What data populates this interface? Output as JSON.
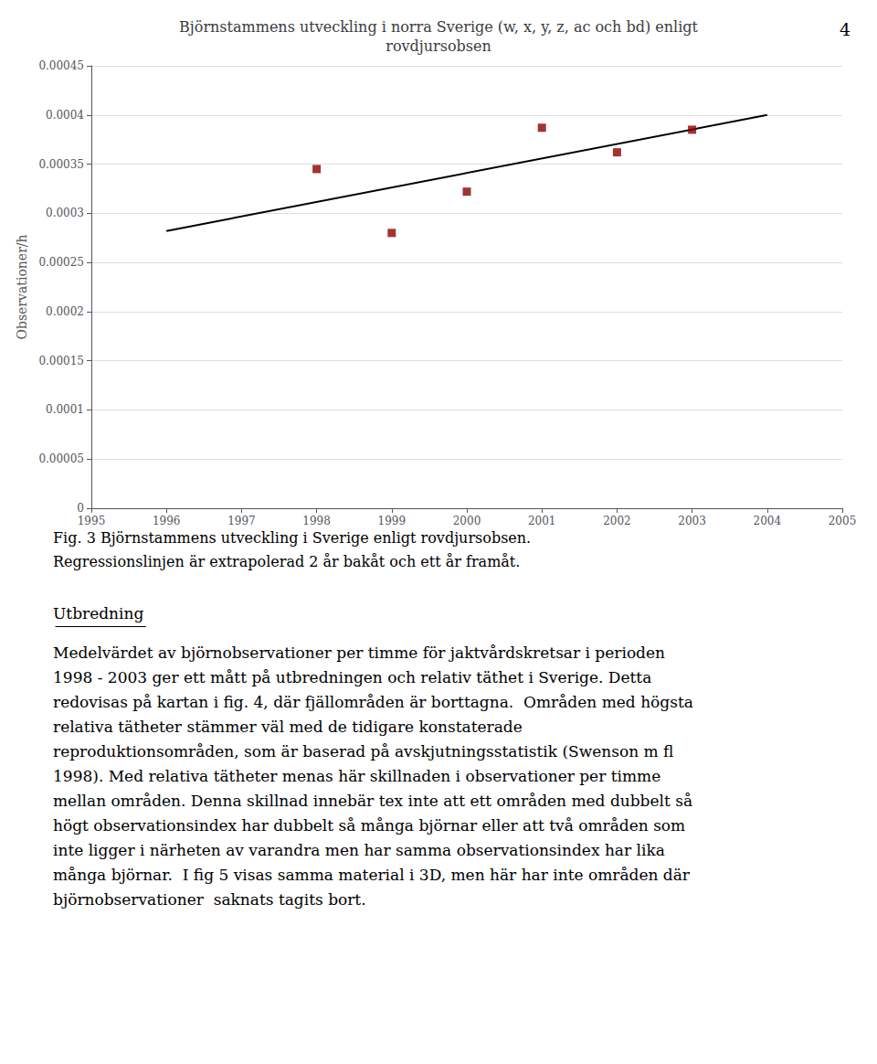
{
  "chart_data": {
    "type": "scatter",
    "title": "Björnstammens utveckling i norra Sverige (w, x, y, z, ac och bd) enligt\nrovdjursobsen",
    "ylabel": "Observationer/h",
    "series": [
      {
        "type": "scatter",
        "color": "#8B0000",
        "marker": "square",
        "x": [
          1998,
          1999,
          2000,
          2001,
          2002,
          2003
        ],
        "values": [
          0.000345,
          0.00028,
          0.000322,
          0.000387,
          0.000362,
          0.000385
        ]
      },
      {
        "type": "line",
        "color": "#000000",
        "line_style": "solid",
        "x": [
          1996,
          2004
        ],
        "values": [
          0.000282,
          0.0004
        ]
      }
    ],
    "xlim": [
      1995,
      2005
    ],
    "xticks": [
      1995,
      1996,
      1997,
      1998,
      1999,
      2000,
      2001,
      2002,
      2003,
      2004,
      2005
    ],
    "ylim": [
      0,
      0.00045
    ],
    "yticks": [
      0,
      5e-05,
      0.0001,
      0.00015,
      0.0002,
      0.00025,
      0.0003,
      0.00035,
      0.0004,
      0.00045
    ],
    "grid": true,
    "annotations": [
      "4",
      "Fig. 3 Björnstammens utveckling i Sverige enligt rovdjursobsen.",
      "Regressionslinjen är extrapolerad 2 år bakåt och ett år framåt.",
      "Utbredning",
      "Medelvärdet av björnobservationer per timme för jaktvårdskretsar i perioden\n1998 - 2003 ger ett mått på utbredningen och relativ täthet i Sverige. Detta\nredovisas på kartan i fig. 4, där fjällområden är borttagna.  Områden med högsta\nrelativa tätheter stämmer väl med de tidigare konstaterade\nreproduktionsområden, som är baserad på avskjutningsstatistik (Swenson m fl\n1998). Med relativa tätheter menas här skillnaden i observationer per timme\nmellan områden. Denna skillnad innebär tex inte att ett områden med dubbelt så\nhögt observationsindex har dubbelt så många björnar eller att två områden som\ninte ligger i närheten av varandra men har samma observationsindex har lika\nmånga björnar.  I fig 5 visas samma material i 3D, men här har inte områden där\nbjörnobservationer  saknats tagits bort."
    ]
  }
}
